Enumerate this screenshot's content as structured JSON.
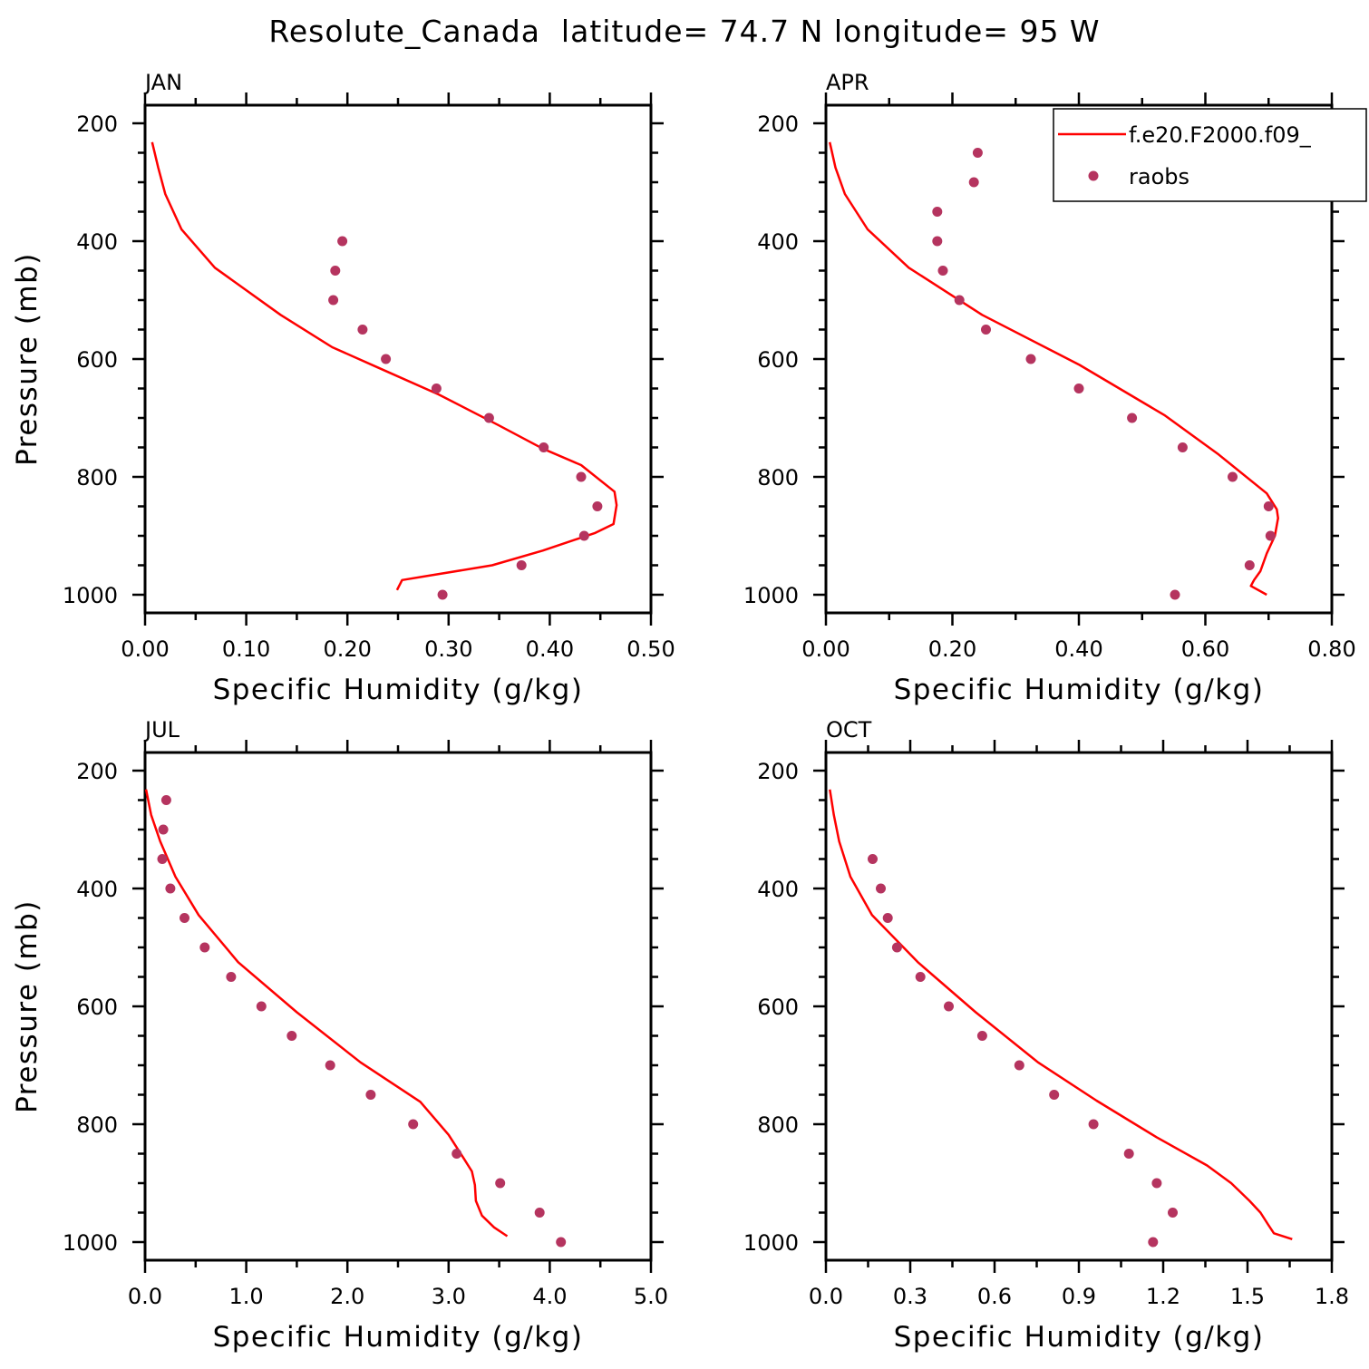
{
  "figure": {
    "title": "Resolute_Canada  latitude= 74.7 N longitude= 95 W"
  },
  "colors": {
    "model": "#ff0000",
    "obs": "#b5345f",
    "axis": "#000000"
  },
  "legend": {
    "position": "top-right of APR panel",
    "entries": [
      {
        "label": "f.e20.F2000.f09_",
        "style": "line",
        "color": "#ff0000"
      },
      {
        "label": "raobs",
        "style": "marker",
        "color": "#b5345f"
      }
    ]
  },
  "chart_data": [
    {
      "type": "line",
      "panel": "JAN",
      "title": "JAN",
      "xlabel": "Specific Humidity (g/kg)",
      "ylabel": "Pressure (mb)",
      "xlim": [
        0,
        0.5
      ],
      "ylim": [
        1000,
        200
      ],
      "xticks": [
        "0.00",
        "0.10",
        "0.20",
        "0.30",
        "0.40",
        "0.50"
      ],
      "yticks": [
        "200",
        "400",
        "600",
        "800",
        "1000"
      ],
      "series": [
        {
          "name": "f.e20.F2000.f09_",
          "kind": "line",
          "x": [
            0.007,
            0.013,
            0.02,
            0.036,
            0.069,
            0.134,
            0.185,
            0.231,
            0.29,
            0.349,
            0.393,
            0.431,
            0.464,
            0.466,
            0.463,
            0.445,
            0.393,
            0.343,
            0.254,
            0.249
          ],
          "y": [
            232,
            275,
            320,
            380,
            445,
            525,
            580,
            615,
            660,
            712,
            752,
            780,
            825,
            848,
            880,
            895,
            925,
            950,
            975,
            992
          ]
        },
        {
          "name": "raobs",
          "kind": "scatter",
          "x": [
            0.195,
            0.188,
            0.186,
            0.215,
            0.238,
            0.288,
            0.34,
            0.394,
            0.431,
            0.447,
            0.434,
            0.372,
            0.294
          ],
          "y": [
            400,
            450,
            500,
            550,
            600,
            650,
            700,
            750,
            800,
            850,
            900,
            950,
            1000
          ]
        }
      ]
    },
    {
      "type": "line",
      "panel": "APR",
      "title": "APR",
      "xlabel": "Specific Humidity (g/kg)",
      "ylabel": "",
      "xlim": [
        0,
        0.8
      ],
      "ylim": [
        1000,
        200
      ],
      "xticks": [
        "0.00",
        "0.20",
        "0.40",
        "0.60",
        "0.80"
      ],
      "yticks": [
        "200",
        "400",
        "600",
        "800",
        "1000"
      ],
      "series": [
        {
          "name": "f.e20.F2000.f09_",
          "kind": "line",
          "x": [
            0.006,
            0.015,
            0.03,
            0.066,
            0.131,
            0.247,
            0.401,
            0.535,
            0.621,
            0.697,
            0.713,
            0.715,
            0.71,
            0.697,
            0.687,
            0.677,
            0.672,
            0.697
          ],
          "y": [
            232,
            275,
            320,
            380,
            445,
            525,
            610,
            695,
            762,
            828,
            855,
            870,
            900,
            930,
            960,
            975,
            985,
            1000
          ]
        },
        {
          "name": "raobs",
          "kind": "scatter",
          "x": [
            0.24,
            0.234,
            0.176,
            0.176,
            0.185,
            0.211,
            0.253,
            0.324,
            0.4,
            0.484,
            0.564,
            0.643,
            0.7,
            0.703,
            0.67,
            0.552
          ],
          "y": [
            250,
            300,
            350,
            400,
            450,
            500,
            550,
            600,
            650,
            700,
            750,
            800,
            850,
            900,
            950,
            1000
          ]
        }
      ]
    },
    {
      "type": "line",
      "panel": "JUL",
      "title": "JUL",
      "xlabel": "Specific Humidity (g/kg)",
      "ylabel": "Pressure (mb)",
      "xlim": [
        0,
        5.0
      ],
      "ylim": [
        1000,
        200
      ],
      "xticks": [
        "0.0",
        "1.0",
        "2.0",
        "3.0",
        "4.0",
        "5.0"
      ],
      "yticks": [
        "200",
        "400",
        "600",
        "800",
        "1000"
      ],
      "series": [
        {
          "name": "f.e20.F2000.f09_",
          "kind": "line",
          "x": [
            0.01,
            0.06,
            0.15,
            0.3,
            0.53,
            0.92,
            1.5,
            2.13,
            2.72,
            3.0,
            3.15,
            3.23,
            3.26,
            3.27,
            3.33,
            3.45,
            3.58
          ],
          "y": [
            232,
            275,
            320,
            380,
            445,
            525,
            610,
            695,
            762,
            818,
            858,
            880,
            903,
            930,
            955,
            975,
            990
          ]
        },
        {
          "name": "raobs",
          "kind": "scatter",
          "x": [
            0.21,
            0.18,
            0.17,
            0.25,
            0.39,
            0.59,
            0.85,
            1.15,
            1.45,
            1.83,
            2.23,
            2.65,
            3.08,
            3.51,
            3.9,
            4.11
          ],
          "y": [
            250,
            300,
            350,
            400,
            450,
            500,
            550,
            600,
            650,
            700,
            750,
            800,
            850,
            900,
            950,
            1000
          ]
        }
      ]
    },
    {
      "type": "line",
      "panel": "OCT",
      "title": "OCT",
      "xlabel": "Specific Humidity (g/kg)",
      "ylabel": "",
      "xlim": [
        0,
        1.8
      ],
      "ylim": [
        1000,
        200
      ],
      "xticks": [
        "0.0",
        "0.3",
        "0.6",
        "0.9",
        "1.2",
        "1.5",
        "1.8"
      ],
      "yticks": [
        "200",
        "400",
        "600",
        "800",
        "1000"
      ],
      "series": [
        {
          "name": "f.e20.F2000.f09_",
          "kind": "line",
          "x": [
            0.014,
            0.028,
            0.047,
            0.087,
            0.164,
            0.327,
            0.533,
            0.755,
            0.963,
            1.176,
            1.356,
            1.442,
            1.507,
            1.546,
            1.573,
            1.594,
            1.659
          ],
          "y": [
            232,
            275,
            320,
            380,
            445,
            525,
            610,
            695,
            760,
            822,
            870,
            900,
            930,
            950,
            970,
            985,
            995
          ]
        },
        {
          "name": "raobs",
          "kind": "scatter",
          "x": [
            0.166,
            0.195,
            0.22,
            0.253,
            0.336,
            0.437,
            0.556,
            0.688,
            0.812,
            0.952,
            1.078,
            1.177,
            1.234,
            1.164
          ],
          "y": [
            350,
            400,
            450,
            500,
            550,
            600,
            650,
            700,
            750,
            800,
            850,
            900,
            950,
            1000
          ]
        }
      ]
    }
  ]
}
